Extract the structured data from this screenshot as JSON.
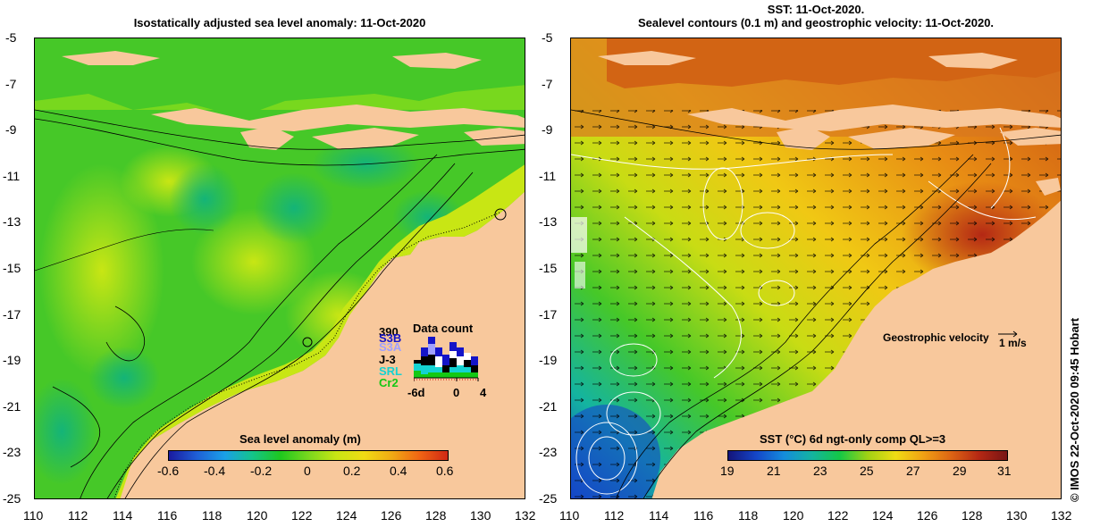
{
  "left_panel": {
    "title": "Isostatically adjusted sea level anomaly: 11-Oct-2020",
    "colorbar": {
      "title": "Sea level anomaly (m)",
      "ticks": [
        "-0.6",
        "-0.4",
        "-0.2",
        "0",
        "0.2",
        "0.4",
        "0.6"
      ],
      "colors": [
        "#1a1aa0",
        "#1f5fd6",
        "#1aa0e8",
        "#14c48a",
        "#1ec81e",
        "#78d81e",
        "#c8e614",
        "#f0dc14",
        "#f0aa14",
        "#f06414",
        "#d02814"
      ]
    },
    "data_count": {
      "title": "Data count",
      "satellites": [
        {
          "label": "S3B",
          "color": "#1414c8"
        },
        {
          "label": "S3A",
          "color": "#a0a0ff"
        },
        {
          "label": "J-3",
          "color": "#000000"
        },
        {
          "label": "SRL",
          "color": "#14d2d2"
        },
        {
          "label": "Cr2",
          "color": "#14c814"
        }
      ],
      "overprint_label": "390",
      "x_ticks": [
        "-6d",
        "0",
        "4"
      ]
    }
  },
  "right_panel": {
    "title_line1": "SST: 11-Oct-2020.",
    "title_line2": "Sealevel contours (0.1 m) and geostrophic velocity: 11-Oct-2020.",
    "velocity_label": "Geostrophic velocity",
    "velocity_scale": "1 m/s",
    "colorbar": {
      "title": "SST (°C) 6d ngt-only comp QL>=3",
      "ticks": [
        "19",
        "21",
        "23",
        "25",
        "27",
        "29",
        "31"
      ],
      "colors": [
        "#14147a",
        "#1446c8",
        "#148cdc",
        "#14b4a0",
        "#14c846",
        "#a0d214",
        "#f0dc14",
        "#f0a014",
        "#dc6414",
        "#b42814",
        "#781414"
      ]
    }
  },
  "axes": {
    "lat_ticks": [
      "-5",
      "-7",
      "-9",
      "-11",
      "-13",
      "-15",
      "-17",
      "-19",
      "-21",
      "-23",
      "-25"
    ],
    "lon_ticks": [
      "110",
      "112",
      "114",
      "116",
      "118",
      "120",
      "122",
      "124",
      "126",
      "128",
      "130",
      "132"
    ]
  },
  "colors": {
    "land": "#f8c89c",
    "credit_text": "#000000"
  },
  "credit": "© IMOS 22-Oct-2020 09:45 Hobart"
}
